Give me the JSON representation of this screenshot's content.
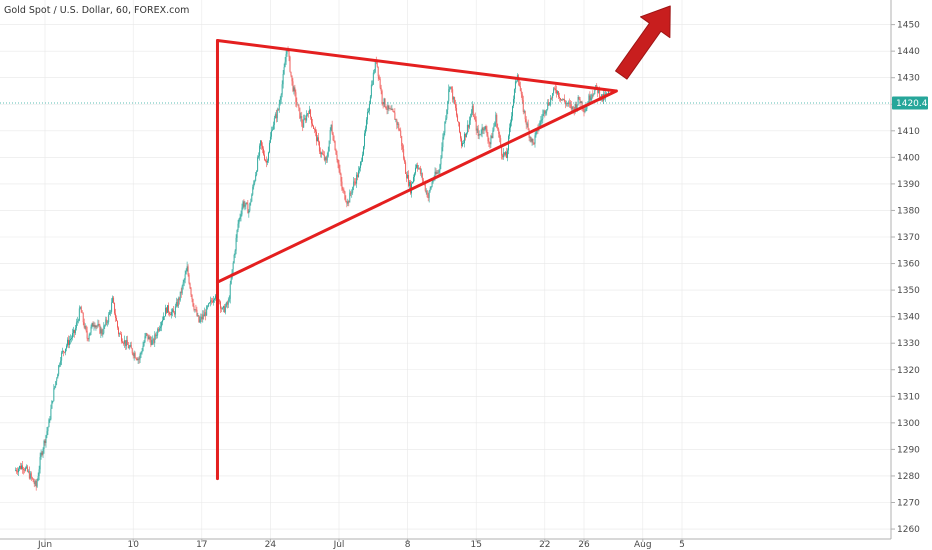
{
  "chart_data": {
    "type": "candlestick",
    "title": "Gold Spot / U.S. Dollar, 60, FOREX.com",
    "ylim": [
      1258,
      1460
    ],
    "y_ticks": [
      1260,
      1270,
      1280,
      1290,
      1300,
      1310,
      1320,
      1330,
      1340,
      1350,
      1360,
      1370,
      1380,
      1390,
      1400,
      1410,
      1420,
      1430,
      1440,
      1450
    ],
    "x_range": [
      -3,
      65
    ],
    "x_ticks": [
      {
        "label": "Jun",
        "day": 0
      },
      {
        "label": "10",
        "day": 9
      },
      {
        "label": "17",
        "day": 16
      },
      {
        "label": "24",
        "day": 23
      },
      {
        "label": "Jul",
        "day": 30
      },
      {
        "label": "8",
        "day": 37
      },
      {
        "label": "15",
        "day": 44
      },
      {
        "label": "22",
        "day": 51
      },
      {
        "label": "26",
        "day": 55
      },
      {
        "label": "Aug",
        "day": 61
      },
      {
        "label": "5",
        "day": 65
      }
    ],
    "current_price": {
      "label": "1420.48",
      "value": 1420.48
    },
    "price_path": [
      [
        -3.0,
        1282
      ],
      [
        -2.2,
        1284
      ],
      [
        -1.6,
        1281
      ],
      [
        -0.8,
        1276
      ],
      [
        -0.3,
        1288
      ],
      [
        0.5,
        1300
      ],
      [
        1.0,
        1312
      ],
      [
        1.7,
        1325
      ],
      [
        2.4,
        1330
      ],
      [
        3.1,
        1334
      ],
      [
        3.7,
        1343
      ],
      [
        4.4,
        1332
      ],
      [
        5.1,
        1338
      ],
      [
        5.9,
        1334
      ],
      [
        6.6,
        1340
      ],
      [
        7.0,
        1346
      ],
      [
        7.6,
        1334
      ],
      [
        8.3,
        1330
      ],
      [
        9.0,
        1327
      ],
      [
        9.7,
        1324
      ],
      [
        10.4,
        1333
      ],
      [
        11.1,
        1330
      ],
      [
        11.8,
        1337
      ],
      [
        12.5,
        1343
      ],
      [
        13.2,
        1341
      ],
      [
        13.9,
        1348
      ],
      [
        14.6,
        1358
      ],
      [
        15.2,
        1345
      ],
      [
        15.8,
        1338
      ],
      [
        16.4,
        1341
      ],
      [
        17.0,
        1345
      ],
      [
        17.6,
        1350
      ],
      [
        18.2,
        1342
      ],
      [
        18.8,
        1345
      ],
      [
        19.3,
        1360
      ],
      [
        19.8,
        1375
      ],
      [
        20.3,
        1383
      ],
      [
        20.9,
        1380
      ],
      [
        21.5,
        1392
      ],
      [
        22.1,
        1405
      ],
      [
        22.7,
        1398
      ],
      [
        23.3,
        1412
      ],
      [
        23.9,
        1418
      ],
      [
        24.4,
        1430
      ],
      [
        24.8,
        1442
      ],
      [
        25.3,
        1428
      ],
      [
        25.8,
        1420
      ],
      [
        26.4,
        1412
      ],
      [
        27.0,
        1418
      ],
      [
        27.6,
        1410
      ],
      [
        28.2,
        1402
      ],
      [
        28.8,
        1398
      ],
      [
        29.3,
        1412
      ],
      [
        29.9,
        1400
      ],
      [
        30.4,
        1388
      ],
      [
        31.0,
        1383
      ],
      [
        31.6,
        1390
      ],
      [
        32.2,
        1395
      ],
      [
        32.8,
        1410
      ],
      [
        33.4,
        1427
      ],
      [
        33.9,
        1437
      ],
      [
        34.5,
        1422
      ],
      [
        35.1,
        1418
      ],
      [
        35.7,
        1416
      ],
      [
        36.3,
        1410
      ],
      [
        36.9,
        1395
      ],
      [
        37.4,
        1388
      ],
      [
        38.0,
        1398
      ],
      [
        38.6,
        1392
      ],
      [
        39.2,
        1385
      ],
      [
        39.7,
        1392
      ],
      [
        40.3,
        1395
      ],
      [
        40.8,
        1410
      ],
      [
        41.4,
        1428
      ],
      [
        42.0,
        1418
      ],
      [
        42.6,
        1405
      ],
      [
        43.1,
        1410
      ],
      [
        43.7,
        1418
      ],
      [
        44.3,
        1408
      ],
      [
        44.9,
        1412
      ],
      [
        45.5,
        1405
      ],
      [
        46.1,
        1415
      ],
      [
        46.7,
        1402
      ],
      [
        47.2,
        1400
      ],
      [
        47.8,
        1420
      ],
      [
        48.3,
        1432
      ],
      [
        48.8,
        1420
      ],
      [
        49.4,
        1410
      ],
      [
        49.9,
        1405
      ],
      [
        50.5,
        1412
      ],
      [
        51.1,
        1418
      ],
      [
        51.7,
        1422
      ],
      [
        52.2,
        1426
      ],
      [
        52.8,
        1422
      ],
      [
        53.4,
        1420
      ],
      [
        54.0,
        1418
      ],
      [
        54.6,
        1422
      ],
      [
        55.2,
        1418
      ],
      [
        55.8,
        1424
      ],
      [
        56.4,
        1426
      ],
      [
        57.0,
        1422
      ],
      [
        57.6,
        1424
      ]
    ],
    "annotations": {
      "flagpole": {
        "day": 17.6,
        "from": 1279,
        "to": 1444
      },
      "upper_trendline": {
        "from": [
          17.6,
          1444
        ],
        "to": [
          58.3,
          1425
        ]
      },
      "lower_trendline": {
        "from": [
          17.6,
          1353
        ],
        "to": [
          58.3,
          1425
        ]
      },
      "arrow": {
        "from": [
          58.8,
          1431
        ],
        "to": [
          63.8,
          1457
        ]
      }
    },
    "colors": {
      "up": "#26a69a",
      "down": "#ef5350",
      "annotation": "#e41f1f",
      "arrow_fill": "#c81e1e",
      "price_line": "#26a69a",
      "grid": "#e8e8e8",
      "axis": "#b0b0b0"
    }
  }
}
